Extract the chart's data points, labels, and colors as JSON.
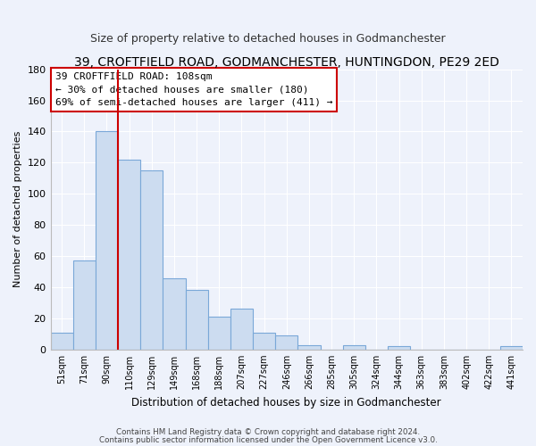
{
  "title": "39, CROFTFIELD ROAD, GODMANCHESTER, HUNTINGDON, PE29 2ED",
  "subtitle": "Size of property relative to detached houses in Godmanchester",
  "xlabel": "Distribution of detached houses by size in Godmanchester",
  "ylabel": "Number of detached properties",
  "bar_labels": [
    "51sqm",
    "71sqm",
    "90sqm",
    "110sqm",
    "129sqm",
    "149sqm",
    "168sqm",
    "188sqm",
    "207sqm",
    "227sqm",
    "246sqm",
    "266sqm",
    "285sqm",
    "305sqm",
    "324sqm",
    "344sqm",
    "363sqm",
    "383sqm",
    "402sqm",
    "422sqm",
    "441sqm"
  ],
  "bar_heights": [
    11,
    57,
    140,
    122,
    115,
    46,
    38,
    21,
    26,
    11,
    9,
    3,
    0,
    3,
    0,
    2,
    0,
    0,
    0,
    0,
    2
  ],
  "bar_color": "#ccdcf0",
  "bar_edge_color": "#7aa8d8",
  "vline_x_index": 2,
  "vline_color": "#cc0000",
  "ylim": [
    0,
    180
  ],
  "yticks": [
    0,
    20,
    40,
    60,
    80,
    100,
    120,
    140,
    160,
    180
  ],
  "annotation_title": "39 CROFTFIELD ROAD: 108sqm",
  "annotation_line1": "← 30% of detached houses are smaller (180)",
  "annotation_line2": "69% of semi-detached houses are larger (411) →",
  "footnote1": "Contains HM Land Registry data © Crown copyright and database right 2024.",
  "footnote2": "Contains public sector information licensed under the Open Government Licence v3.0.",
  "background_color": "#eef2fb",
  "plot_bg_color": "#eef2fb",
  "grid_color": "#ffffff",
  "title_fontsize": 10,
  "subtitle_fontsize": 9
}
